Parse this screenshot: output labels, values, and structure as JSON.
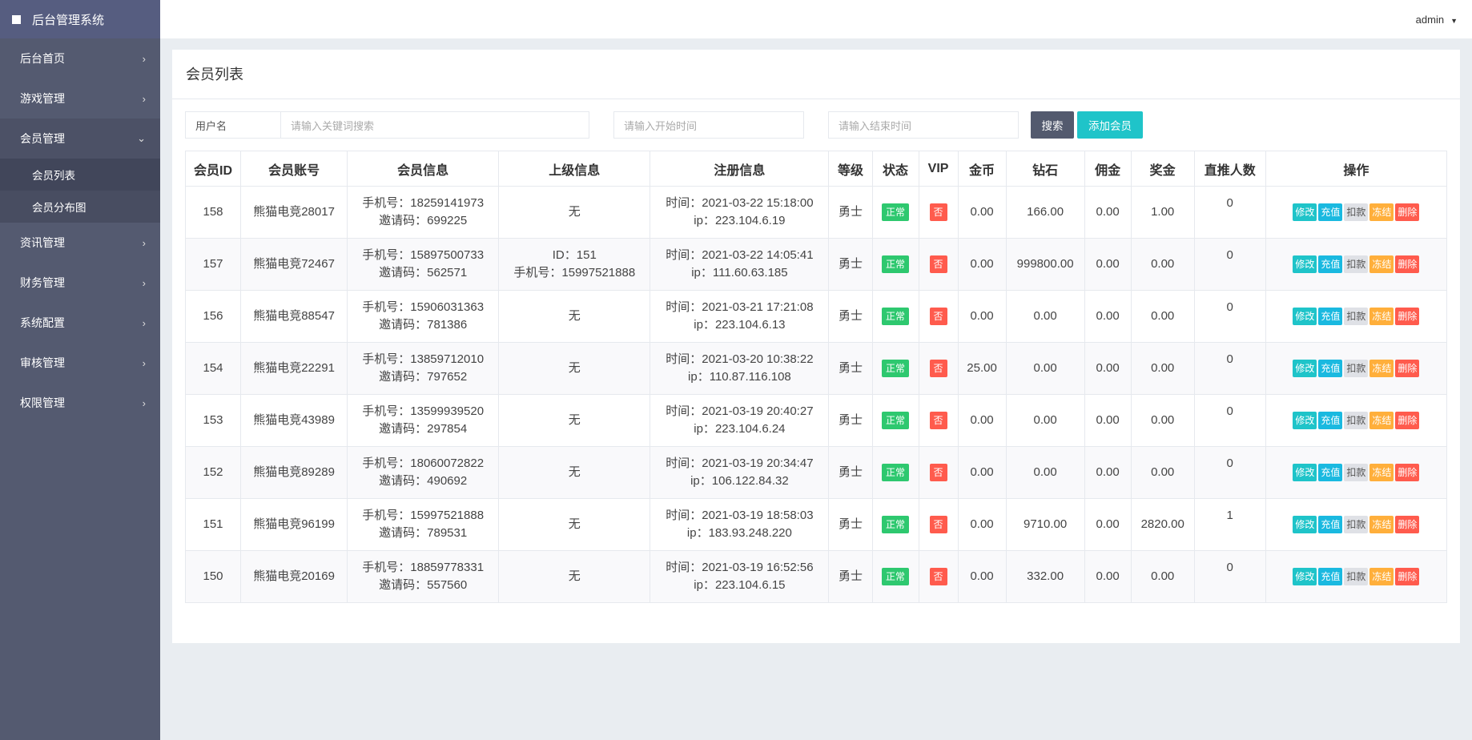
{
  "app": {
    "title": "后台管理系统",
    "user": "admin"
  },
  "sidebar": {
    "items": [
      {
        "label": "后台首页"
      },
      {
        "label": "游戏管理"
      },
      {
        "label": "会员管理",
        "open": true,
        "children": [
          {
            "label": "会员列表",
            "active": true
          },
          {
            "label": "会员分布图"
          }
        ]
      },
      {
        "label": "资讯管理"
      },
      {
        "label": "财务管理"
      },
      {
        "label": "系统配置"
      },
      {
        "label": "审核管理"
      },
      {
        "label": "权限管理"
      }
    ]
  },
  "page": {
    "title": "会员列表"
  },
  "filters": {
    "field_label": "用户名",
    "keyword_placeholder": "请输入关键词搜索",
    "start_placeholder": "请输入开始时间",
    "end_placeholder": "请输入结束时间",
    "search_label": "搜索",
    "add_label": "添加会员"
  },
  "colors": {
    "search": "#535a6e",
    "add": "#1fc4c9",
    "status": "#2ec86f",
    "vip_no": "#ff5b4d",
    "edit": "#1fc4c9",
    "recharge": "#1ab9e0",
    "deduct": "#dfe1e6",
    "freeze": "#ffaf3b",
    "delete": "#ff5b4d"
  },
  "table": {
    "columns": [
      "会员ID",
      "会员账号",
      "会员信息",
      "上级信息",
      "注册信息",
      "等级",
      "状态",
      "VIP",
      "金币",
      "钻石",
      "佣金",
      "奖金",
      "直推人数",
      "操作"
    ],
    "labels": {
      "phone": "手机号：",
      "invite": "邀请码：",
      "time": "时间：",
      "ip": "ip：",
      "none": "无",
      "id": "ID："
    },
    "actions": [
      "修改",
      "充值",
      "扣款",
      "冻结",
      "删除"
    ],
    "rows": [
      {
        "id": "158",
        "account": "熊猫电竞28017",
        "phone": "18259141973",
        "invite": "699225",
        "parent": null,
        "time": "2021-03-22 15:18:00",
        "ip": "223.104.6.19",
        "level": "勇士",
        "status": "正常",
        "vip": "否",
        "gold": "0.00",
        "diamond": "166.00",
        "commission": "0.00",
        "bonus": "1.00",
        "direct": "0"
      },
      {
        "id": "157",
        "account": "熊猫电竞72467",
        "phone": "15897500733",
        "invite": "562571",
        "parent": {
          "id": "151",
          "phone": "15997521888"
        },
        "time": "2021-03-22 14:05:41",
        "ip": "111.60.63.185",
        "level": "勇士",
        "status": "正常",
        "vip": "否",
        "gold": "0.00",
        "diamond": "999800.00",
        "commission": "0.00",
        "bonus": "0.00",
        "direct": "0"
      },
      {
        "id": "156",
        "account": "熊猫电竞88547",
        "phone": "15906031363",
        "invite": "781386",
        "parent": null,
        "time": "2021-03-21 17:21:08",
        "ip": "223.104.6.13",
        "level": "勇士",
        "status": "正常",
        "vip": "否",
        "gold": "0.00",
        "diamond": "0.00",
        "commission": "0.00",
        "bonus": "0.00",
        "direct": "0"
      },
      {
        "id": "154",
        "account": "熊猫电竞22291",
        "phone": "13859712010",
        "invite": "797652",
        "parent": null,
        "time": "2021-03-20 10:38:22",
        "ip": "110.87.116.108",
        "level": "勇士",
        "status": "正常",
        "vip": "否",
        "gold": "25.00",
        "diamond": "0.00",
        "commission": "0.00",
        "bonus": "0.00",
        "direct": "0"
      },
      {
        "id": "153",
        "account": "熊猫电竞43989",
        "phone": "13599939520",
        "invite": "297854",
        "parent": null,
        "time": "2021-03-19 20:40:27",
        "ip": "223.104.6.24",
        "level": "勇士",
        "status": "正常",
        "vip": "否",
        "gold": "0.00",
        "diamond": "0.00",
        "commission": "0.00",
        "bonus": "0.00",
        "direct": "0"
      },
      {
        "id": "152",
        "account": "熊猫电竞89289",
        "phone": "18060072822",
        "invite": "490692",
        "parent": null,
        "time": "2021-03-19 20:34:47",
        "ip": "106.122.84.32",
        "level": "勇士",
        "status": "正常",
        "vip": "否",
        "gold": "0.00",
        "diamond": "0.00",
        "commission": "0.00",
        "bonus": "0.00",
        "direct": "0"
      },
      {
        "id": "151",
        "account": "熊猫电竞96199",
        "phone": "15997521888",
        "invite": "789531",
        "parent": null,
        "time": "2021-03-19 18:58:03",
        "ip": "183.93.248.220",
        "level": "勇士",
        "status": "正常",
        "vip": "否",
        "gold": "0.00",
        "diamond": "9710.00",
        "commission": "0.00",
        "bonus": "2820.00",
        "direct": "1"
      },
      {
        "id": "150",
        "account": "熊猫电竞20169",
        "phone": "18859778331",
        "invite": "557560",
        "parent": null,
        "time": "2021-03-19 16:52:56",
        "ip": "223.104.6.15",
        "level": "勇士",
        "status": "正常",
        "vip": "否",
        "gold": "0.00",
        "diamond": "332.00",
        "commission": "0.00",
        "bonus": "0.00",
        "direct": "0"
      }
    ]
  }
}
